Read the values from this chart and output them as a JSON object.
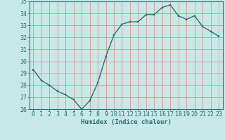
{
  "x": [
    0,
    1,
    2,
    3,
    4,
    5,
    6,
    7,
    8,
    9,
    10,
    11,
    12,
    13,
    14,
    15,
    16,
    17,
    18,
    19,
    20,
    21,
    22,
    23
  ],
  "y": [
    29.3,
    28.4,
    28.0,
    27.5,
    27.2,
    26.8,
    26.0,
    26.7,
    28.2,
    30.4,
    32.2,
    33.1,
    33.3,
    33.3,
    33.9,
    33.9,
    34.5,
    34.7,
    33.8,
    33.5,
    33.8,
    32.9,
    32.5,
    32.1
  ],
  "line_color": "#2d6e6e",
  "marker_color": "#2d6e6e",
  "bg_color": "#c8e8e8",
  "plot_bg_color": "#c8e8e8",
  "grid_color": "#e08080",
  "xlabel": "Humidex (Indice chaleur)",
  "ylim": [
    26,
    35
  ],
  "xlim": [
    -0.5,
    23.5
  ],
  "yticks": [
    26,
    27,
    28,
    29,
    30,
    31,
    32,
    33,
    34,
    35
  ],
  "xticks": [
    0,
    1,
    2,
    3,
    4,
    5,
    6,
    7,
    8,
    9,
    10,
    11,
    12,
    13,
    14,
    15,
    16,
    17,
    18,
    19,
    20,
    21,
    22,
    23
  ],
  "label_fontsize": 6.5,
  "tick_fontsize": 6.0,
  "linewidth": 1.0,
  "markersize": 2.0
}
